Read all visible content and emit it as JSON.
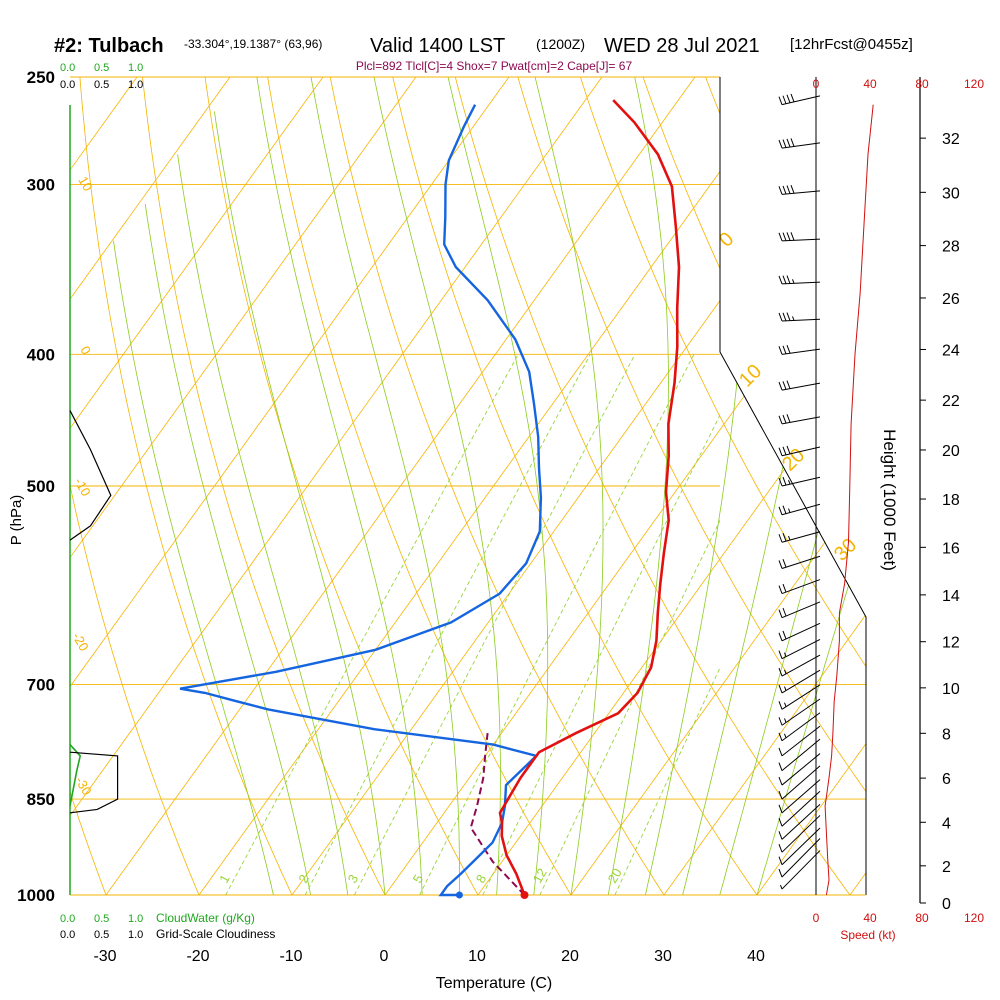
{
  "header": {
    "station": "#2: Tulbach",
    "coords": "-33.304°,19.1387° (63,96)",
    "valid": "Valid 1400 LST",
    "zulu": "(1200Z)",
    "date": "WED 28 Jul 2021",
    "forecast": "[12hrFcst@0455z]",
    "params": "Plcl=892 Tlcl[C]=4 Shox=7 Pwat[cm]=2 Cape[J]= 67"
  },
  "colors": {
    "isotherm": "#f5b400",
    "dry_adiabat": "#f5b400",
    "moist_adiabat": "#8ccc1e",
    "mixing_ratio": "#9ad43a",
    "temperature": "#e31010",
    "dewpoint": "#1565e0",
    "parcel": "#8b0a50",
    "cloud_water": "#1fa81f",
    "speed": "#d01010"
  },
  "chart_data": {
    "type": "line",
    "title": "#2: Tulbach",
    "xlabel": "Temperature (C)",
    "ylabel": "P (hPa)",
    "y2label": "Height (1000 Feet)",
    "x_ticks": [
      "-30",
      "-20",
      "-10",
      "0",
      "10",
      "20",
      "30",
      "40"
    ],
    "x_tick_values": [
      -30,
      -20,
      -10,
      0,
      10,
      20,
      30,
      40
    ],
    "y_ticks": [
      "250",
      "300",
      "400",
      "500",
      "700",
      "850",
      "1000"
    ],
    "y_tick_values": [
      250,
      300,
      400,
      500,
      700,
      850,
      1000
    ],
    "height_ticks": [
      "0",
      "2",
      "4",
      "6",
      "8",
      "10",
      "12",
      "14",
      "16",
      "18",
      "20",
      "22",
      "24",
      "26",
      "28",
      "30",
      "32"
    ],
    "height_tick_values": [
      0,
      2,
      4,
      6,
      8,
      10,
      12,
      14,
      16,
      18,
      20,
      22,
      24,
      26,
      28,
      30,
      32
    ],
    "top_scale_green": [
      "0.0",
      "0.5",
      "1.0"
    ],
    "top_scale_black": [
      "0.0",
      "0.5",
      "1.0"
    ],
    "bottom_scale_green": [
      "0.0",
      "0.5",
      "1.0"
    ],
    "bottom_scale_black": [
      "0.0",
      "0.5",
      "1.0"
    ],
    "cloud_water_label": "CloudWater (g/Kg)",
    "cloudiness_label": "Grid-Scale Cloudiness",
    "speed_ticks": [
      "0",
      "40",
      "80",
      "120"
    ],
    "speed_tick_values": [
      0,
      40,
      80,
      120
    ],
    "speed_label": "Speed (kt)",
    "adiabat_labels_left": [
      "10",
      "0",
      "-10",
      "-20",
      "-30"
    ],
    "adiabat_labels_right": [
      "0",
      "10",
      "20",
      "30"
    ],
    "mixing_ratio_labels": [
      "1",
      "2",
      "3",
      "5",
      "8",
      "12",
      "20"
    ],
    "mixing_ratio_values": [
      1,
      2,
      3,
      5,
      8,
      12,
      20
    ],
    "series": [
      {
        "name": "temperature",
        "points": [
          [
            15.0,
            1000
          ],
          [
            12.5,
            965
          ],
          [
            10.0,
            935
          ],
          [
            8.0,
            905
          ],
          [
            7.0,
            885
          ],
          [
            6.0,
            870
          ],
          [
            5.5,
            820
          ],
          [
            5.5,
            785
          ],
          [
            8.0,
            760
          ],
          [
            11.0,
            735
          ],
          [
            11.5,
            710
          ],
          [
            11.0,
            680
          ],
          [
            9.5,
            650
          ],
          [
            7.5,
            620
          ],
          [
            5.5,
            590
          ],
          [
            3.5,
            560
          ],
          [
            1.5,
            530
          ],
          [
            -1.0,
            505
          ],
          [
            -3.5,
            475
          ],
          [
            -6.0,
            450
          ],
          [
            -8.5,
            420
          ],
          [
            -11.0,
            395
          ],
          [
            -14.0,
            370
          ],
          [
            -17.0,
            345
          ],
          [
            -20.5,
            322
          ],
          [
            -24.0,
            301
          ],
          [
            -28.0,
            285
          ],
          [
            -33.0,
            270
          ],
          [
            -37.0,
            260
          ]
        ]
      },
      {
        "name": "dewpoint",
        "points": [
          [
            8.0,
            1000
          ],
          [
            6.0,
            1000
          ],
          [
            6.0,
            985
          ],
          [
            6.5,
            965
          ],
          [
            7.0,
            940
          ],
          [
            7.5,
            915
          ],
          [
            7.0,
            885
          ],
          [
            6.0,
            860
          ],
          [
            4.5,
            830
          ],
          [
            5.5,
            790
          ],
          [
            0.0,
            775
          ],
          [
            -14.0,
            755
          ],
          [
            -27.0,
            730
          ],
          [
            -31.0,
            720
          ],
          [
            -35.0,
            710
          ],
          [
            -38.0,
            705
          ],
          [
            -29.0,
            685
          ],
          [
            -20.0,
            660
          ],
          [
            -14.0,
            630
          ],
          [
            -11.0,
            600
          ],
          [
            -10.5,
            570
          ],
          [
            -11.5,
            540
          ],
          [
            -14.0,
            510
          ],
          [
            -16.5,
            485
          ],
          [
            -19.0,
            460
          ],
          [
            -22.0,
            435
          ],
          [
            -25.0,
            412
          ],
          [
            -29.0,
            390
          ],
          [
            -35.0,
            365
          ],
          [
            -41.0,
            345
          ],
          [
            -44.0,
            332
          ],
          [
            -46.0,
            317
          ],
          [
            -48.5,
            300
          ],
          [
            -50.0,
            288
          ],
          [
            -51.0,
            272
          ],
          [
            -51.5,
            262
          ]
        ]
      },
      {
        "name": "parcel",
        "points": [
          [
            15.0,
            1000
          ],
          [
            9.0,
            945
          ],
          [
            4.0,
            892
          ],
          [
            3.0,
            860
          ],
          [
            1.5,
            820
          ],
          [
            0.0,
            790
          ],
          [
            -1.5,
            760
          ]
        ]
      }
    ],
    "cloud_water": [
      [
        0.0,
        775
      ],
      [
        0.15,
        790
      ],
      [
        0.1,
        810
      ],
      [
        0.0,
        860
      ]
    ],
    "cloudiness": [
      [
        [
          0.0,
          440
        ],
        [
          0.3,
          470
        ],
        [
          0.6,
          508
        ],
        [
          0.3,
          535
        ],
        [
          0.0,
          548
        ]
      ],
      [
        [
          0.0,
          785
        ],
        [
          0.7,
          790
        ],
        [
          0.7,
          850
        ],
        [
          0.4,
          865
        ],
        [
          0.0,
          870
        ]
      ]
    ],
    "wind_speed": [
      [
        8,
        1000
      ],
      [
        10,
        975
      ],
      [
        9,
        940
      ],
      [
        8,
        900
      ],
      [
        7,
        860
      ],
      [
        10,
        820
      ],
      [
        12,
        790
      ],
      [
        13,
        760
      ],
      [
        14,
        720
      ],
      [
        16,
        690
      ],
      [
        18,
        650
      ],
      [
        18,
        620
      ],
      [
        22,
        590
      ],
      [
        25,
        550
      ],
      [
        26,
        500
      ],
      [
        27,
        450
      ],
      [
        30,
        400
      ],
      [
        34,
        360
      ],
      [
        37,
        320
      ],
      [
        40,
        285
      ],
      [
        44,
        262
      ]
    ],
    "wind_barbs": [
      {
        "p": 262,
        "dir": 265,
        "kt": 40
      },
      {
        "p": 282,
        "dir": 255,
        "kt": 40
      },
      {
        "p": 305,
        "dir": 250,
        "kt": 40
      },
      {
        "p": 330,
        "dir": 245,
        "kt": 40
      },
      {
        "p": 355,
        "dir": 245,
        "kt": 35
      },
      {
        "p": 378,
        "dir": 245,
        "kt": 35
      },
      {
        "p": 400,
        "dir": 255,
        "kt": 30
      },
      {
        "p": 425,
        "dir": 260,
        "kt": 30
      },
      {
        "p": 450,
        "dir": 260,
        "kt": 30
      },
      {
        "p": 475,
        "dir": 265,
        "kt": 30
      },
      {
        "p": 500,
        "dir": 265,
        "kt": 25
      },
      {
        "p": 525,
        "dir": 270,
        "kt": 25
      },
      {
        "p": 550,
        "dir": 270,
        "kt": 25
      },
      {
        "p": 575,
        "dir": 275,
        "kt": 20
      },
      {
        "p": 600,
        "dir": 280,
        "kt": 20
      },
      {
        "p": 625,
        "dir": 285,
        "kt": 20
      },
      {
        "p": 650,
        "dir": 290,
        "kt": 20
      },
      {
        "p": 670,
        "dir": 295,
        "kt": 15
      },
      {
        "p": 690,
        "dir": 300,
        "kt": 15
      },
      {
        "p": 710,
        "dir": 305,
        "kt": 15
      },
      {
        "p": 730,
        "dir": 310,
        "kt": 15
      },
      {
        "p": 750,
        "dir": 315,
        "kt": 15
      },
      {
        "p": 770,
        "dir": 320,
        "kt": 15
      },
      {
        "p": 790,
        "dir": 325,
        "kt": 10
      },
      {
        "p": 810,
        "dir": 330,
        "kt": 10
      },
      {
        "p": 830,
        "dir": 330,
        "kt": 10
      },
      {
        "p": 850,
        "dir": 335,
        "kt": 10
      },
      {
        "p": 870,
        "dir": 335,
        "kt": 10
      },
      {
        "p": 890,
        "dir": 340,
        "kt": 10
      },
      {
        "p": 910,
        "dir": 340,
        "kt": 10
      },
      {
        "p": 930,
        "dir": 345,
        "kt": 10
      },
      {
        "p": 950,
        "dir": 345,
        "kt": 10
      },
      {
        "p": 970,
        "dir": 350,
        "kt": 10
      },
      {
        "p": 990,
        "dir": 350,
        "kt": 5
      }
    ],
    "surface_temperature": 15.0,
    "surface_dewpoint": 8.0
  }
}
